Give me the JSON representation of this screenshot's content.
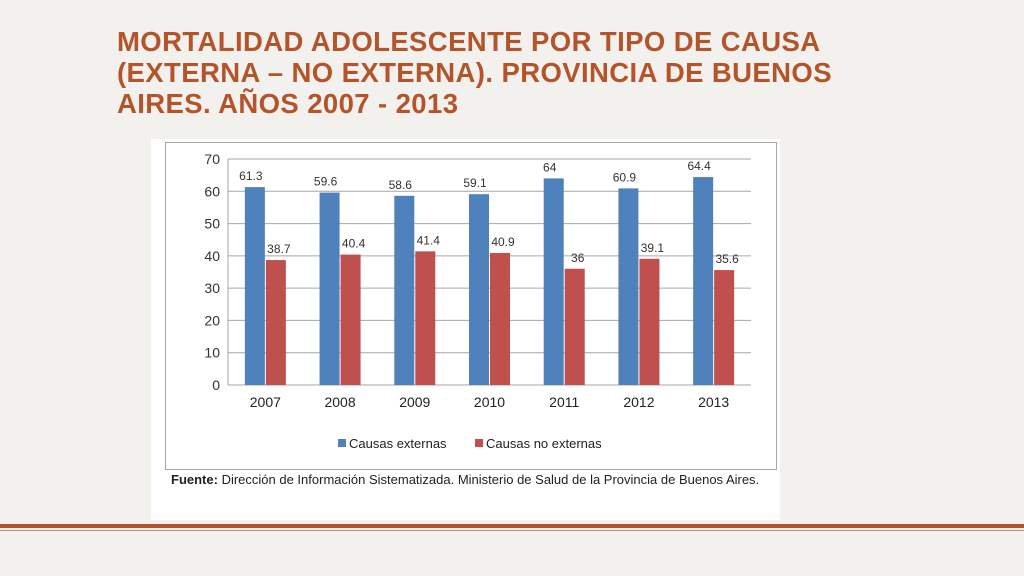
{
  "slide": {
    "title_lines": [
      "MORTALIDAD ADOLESCENTE POR TIPO DE CAUSA",
      "(EXTERNA – NO EXTERNA). PROVINCIA DE BUENOS",
      "AIRES. AÑOS 2007 - 2013"
    ],
    "source_label": "Fuente:",
    "source_text": " Dirección de Información Sistematizada. Ministerio de Salud de la Provincia de Buenos Aires.",
    "accent_color": "#b4542a"
  },
  "chart_data": {
    "type": "bar",
    "categories": [
      "2007",
      "2008",
      "2009",
      "2010",
      "2011",
      "2012",
      "2013"
    ],
    "series": [
      {
        "name": "Causas externas",
        "color": "#4f81bd",
        "values": [
          61.3,
          59.6,
          58.6,
          59.1,
          64,
          60.9,
          64.4
        ],
        "labels": [
          "61.3",
          "59.6",
          "58.6",
          "59.1",
          "64",
          "60.9",
          "64.4"
        ]
      },
      {
        "name": "Causas no externas",
        "color": "#c0504d",
        "values": [
          38.7,
          40.4,
          41.4,
          40.9,
          36,
          39.1,
          35.6
        ],
        "labels": [
          "38.7",
          "40.4",
          "41.4",
          "40.9",
          "36",
          "39.1",
          "35.6"
        ]
      }
    ],
    "ylim": [
      0,
      70
    ],
    "yticks": [
      0,
      10,
      20,
      30,
      40,
      50,
      60,
      70
    ],
    "grid": true,
    "legend_position": "bottom"
  }
}
